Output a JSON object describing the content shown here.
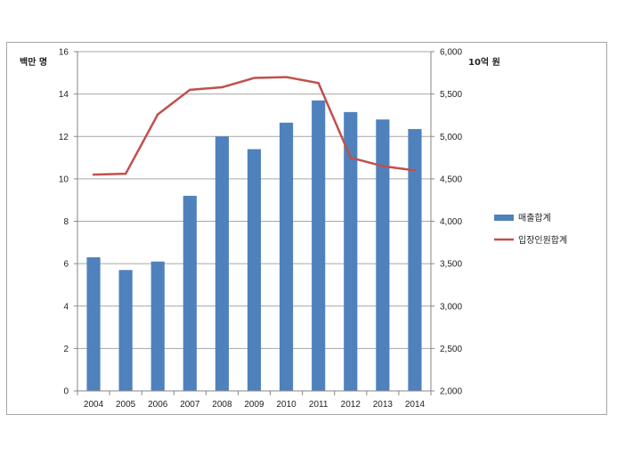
{
  "chart_data": {
    "type": "bar+line",
    "categories": [
      "2004",
      "2005",
      "2006",
      "2007",
      "2008",
      "2009",
      "2010",
      "2011",
      "2012",
      "2013",
      "2014"
    ],
    "left_axis": {
      "unit_label": "백만 명",
      "ylim": [
        0,
        16
      ],
      "ticks": [
        "0",
        "2",
        "4",
        "6",
        "8",
        "10",
        "12",
        "14",
        "16"
      ]
    },
    "right_axis": {
      "unit_label": "10억 원",
      "ylim": [
        2000,
        6000
      ],
      "ticks": [
        "2,000",
        "2,500",
        "3,000",
        "3,500",
        "4,000",
        "4,500",
        "5,000",
        "5,500",
        "6,000"
      ]
    },
    "series": [
      {
        "name": "매출합계",
        "type": "bar",
        "axis": "left",
        "color": "#4f81bd",
        "values": [
          6.3,
          5.7,
          6.1,
          9.2,
          12.0,
          11.4,
          12.65,
          13.7,
          13.15,
          12.8,
          12.35
        ]
      },
      {
        "name": "입장인원합계",
        "type": "line",
        "axis": "right",
        "color": "#c0504d",
        "values": [
          4550,
          4560,
          5260,
          5550,
          5580,
          5690,
          5700,
          5630,
          4750,
          4650,
          4600
        ]
      }
    ],
    "grid": true,
    "legend_position": "right"
  }
}
